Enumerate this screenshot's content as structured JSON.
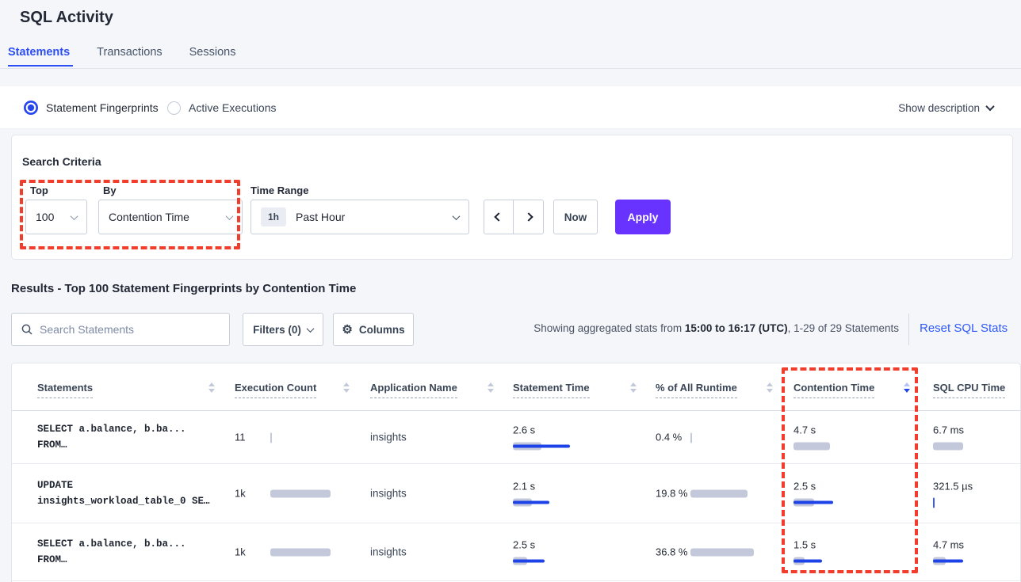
{
  "page": {
    "title": "SQL Activity"
  },
  "tabs": [
    {
      "label": "Statements",
      "active": true
    },
    {
      "label": "Transactions",
      "active": false
    },
    {
      "label": "Sessions",
      "active": false
    }
  ],
  "view_toggle": {
    "options": [
      {
        "label": "Statement Fingerprints",
        "selected": true
      },
      {
        "label": "Active Executions",
        "selected": false
      }
    ],
    "show_description_label": "Show description"
  },
  "search_criteria": {
    "title": "Search Criteria",
    "top": {
      "label": "Top",
      "value": "100"
    },
    "by": {
      "label": "By",
      "value": "Contention Time"
    },
    "time_range": {
      "label": "Time Range",
      "badge": "1h",
      "value": "Past Hour"
    },
    "now_label": "Now",
    "apply_label": "Apply"
  },
  "results": {
    "heading": "Results - Top 100 Statement Fingerprints by Contention Time",
    "search_placeholder": "Search Statements",
    "filters_label": "Filters (0)",
    "columns_label": "Columns",
    "stats_prefix": "Showing aggregated stats from ",
    "stats_bold": "15:00 to 16:17 (UTC)",
    "stats_suffix": ", 1-29 of 29 Statements",
    "reset_label": "Reset SQL Stats"
  },
  "table": {
    "columns": [
      {
        "label": "Statements",
        "sort": "none"
      },
      {
        "label": "Execution Count",
        "sort": "none"
      },
      {
        "label": "Application Name",
        "sort": "none"
      },
      {
        "label": "Statement Time",
        "sort": "none"
      },
      {
        "label": "% of All Runtime",
        "sort": "none"
      },
      {
        "label": "Contention Time",
        "sort": "desc"
      },
      {
        "label": "SQL CPU Time",
        "sort": "none"
      }
    ],
    "rows": [
      {
        "statement_line1": "SELECT a.balance, b.ba...",
        "statement_line2": "FROM…",
        "execution_count": {
          "v": "11",
          "t": "gray"
        },
        "app_name": "insights",
        "statement_time": {
          "v": "2.6 s",
          "g": 36,
          "b": 72
        },
        "pct_runtime": {
          "v": "0.4 %",
          "t": "gray"
        },
        "contention_time": {
          "v": "4.7 s",
          "g": 46,
          "b": 0
        },
        "sql_cpu_time": {
          "v": "6.7 ms",
          "g": 38,
          "b": 0
        }
      },
      {
        "statement_line1": "UPDATE",
        "statement_line2": "insights_workload_table_0 SE…",
        "execution_count": {
          "v": "1k",
          "g": 76,
          "b": 0
        },
        "app_name": "insights",
        "statement_time": {
          "v": "2.1 s",
          "g": 24,
          "b": 46
        },
        "pct_runtime": {
          "v": "19.8 %",
          "g": 72,
          "b": 0
        },
        "contention_time": {
          "v": "2.5 s",
          "g": 26,
          "b": 50
        },
        "sql_cpu_time": {
          "v": "321.5 µs",
          "t": "blue"
        }
      },
      {
        "statement_line1": "SELECT a.balance, b.ba...",
        "statement_line2": "FROM…",
        "execution_count": {
          "v": "1k",
          "g": 76,
          "b": 0
        },
        "app_name": "insights",
        "statement_time": {
          "v": "2.5 s",
          "g": 18,
          "b": 40
        },
        "pct_runtime": {
          "v": "36.8 %",
          "g": 80,
          "b": 0
        },
        "contention_time": {
          "v": "1.5 s",
          "g": 14,
          "b": 36
        },
        "sql_cpu_time": {
          "v": "4.7 ms",
          "g": 16,
          "b": 38
        }
      }
    ]
  },
  "colors": {
    "accent_blue": "#2d4ef5",
    "apply_purple": "#6933ff",
    "annotation_red": "#f23d2c",
    "bar_gray": "#c3c9da",
    "bar_blue": "#1d43e8",
    "link_blue": "#2f5af7"
  }
}
